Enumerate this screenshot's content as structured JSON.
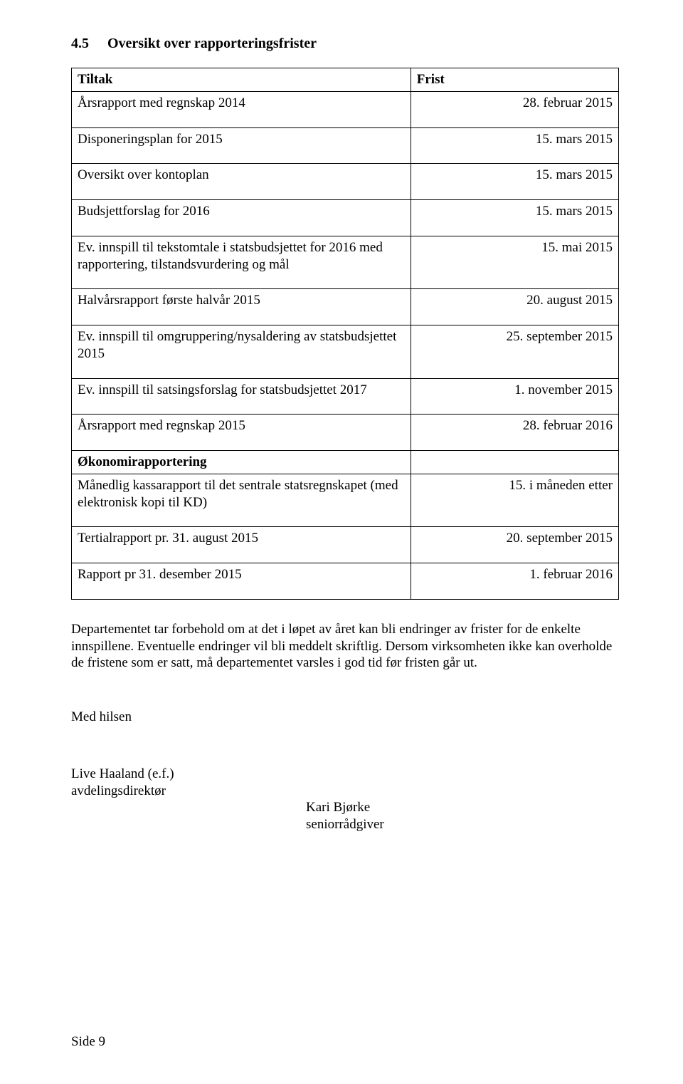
{
  "heading": {
    "number": "4.5",
    "title": "Oversikt over rapporteringsfrister"
  },
  "table": {
    "header": {
      "col1": "Tiltak",
      "col2": "Frist"
    },
    "rows": [
      {
        "tiltak": "Årsrapport med regnskap 2014",
        "frist": "28. februar 2015"
      },
      {
        "tiltak": "Disponeringsplan for 2015",
        "frist": "15. mars 2015"
      },
      {
        "tiltak": "Oversikt over kontoplan",
        "frist": "15. mars 2015"
      },
      {
        "tiltak": "Budsjettforslag for 2016",
        "frist": "15. mars 2015"
      },
      {
        "tiltak": "Ev. innspill til tekstomtale i statsbudsjettet for 2016 med rapportering, tilstandsvurdering og mål",
        "frist": "15. mai 2015"
      },
      {
        "tiltak": "Halvårsrapport første halvår 2015",
        "frist": "20. august 2015"
      },
      {
        "tiltak": "Ev. innspill til omgruppering/nysaldering av statsbudsjettet 2015",
        "frist": "25. september 2015"
      },
      {
        "tiltak": "Ev. innspill til satsingsforslag for statsbudsjettet 2017",
        "frist": "1. november 2015"
      },
      {
        "tiltak": "Årsrapport med regnskap 2015",
        "frist": "28. februar 2016"
      }
    ],
    "subheader": "Økonomirapportering",
    "rows2": [
      {
        "tiltak": "Månedlig kassarapport til det sentrale statsregnskapet (med elektronisk kopi til KD)",
        "frist": "15. i måneden etter"
      },
      {
        "tiltak": "Tertialrapport pr. 31. august 2015",
        "frist": "20. september 2015"
      },
      {
        "tiltak": "Rapport pr 31. desember 2015",
        "frist": "1.   februar 2016"
      }
    ]
  },
  "paragraph": "Departementet tar forbehold om at det i løpet av året kan bli endringer av frister for de enkelte innspillene. Eventuelle endringer vil bli meddelt skriftlig. Dersom virksomheten ikke kan overholde de fristene som er satt, må departementet varsles i god tid før fristen går ut.",
  "closing": "Med hilsen",
  "signatory_left_name": "Live Haaland (e.f.)",
  "signatory_left_title": "avdelingsdirektør",
  "signatory_right_name": "Kari Bjørke",
  "signatory_right_title": "seniorrådgiver",
  "footer": "Side 9"
}
